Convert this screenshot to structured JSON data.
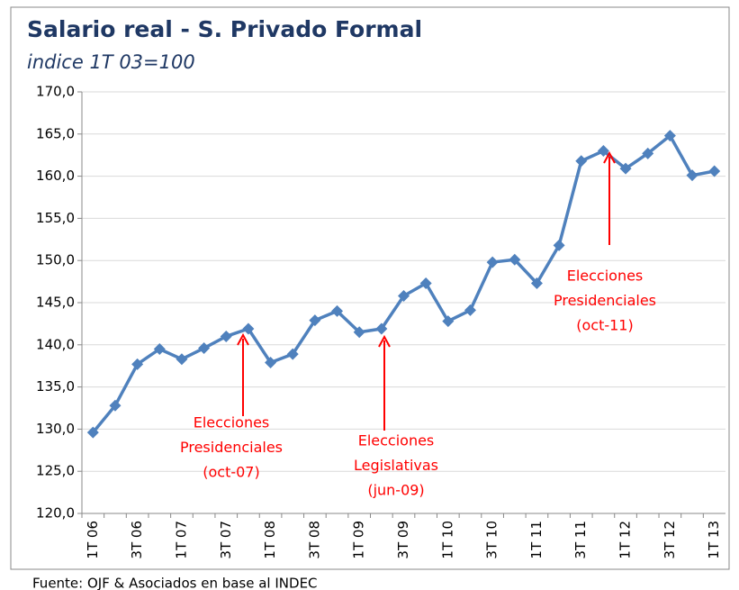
{
  "chart_data": {
    "type": "line",
    "title": "Salario real - S. Privado Formal",
    "subtitle": "indice 1T 03=100",
    "source": "Fuente: OJF & Asociados en base al INDEC",
    "categories": [
      "1T 06",
      null,
      "3T 06",
      null,
      "1T 07",
      null,
      "3T 07",
      null,
      "1T 08",
      null,
      "3T 08",
      null,
      "1T 09",
      null,
      "3T 09",
      null,
      "1T 10",
      null,
      "3T 10",
      null,
      "1T 11",
      null,
      "3T 11",
      null,
      "1T 12",
      null,
      "3T 12",
      null,
      "1T 13"
    ],
    "series": [
      {
        "name": "Salario real",
        "color": "#4f81bd",
        "values": [
          129.6,
          132.8,
          137.7,
          139.5,
          138.3,
          139.6,
          141.0,
          141.9,
          137.9,
          138.9,
          142.9,
          144.0,
          141.5,
          141.9,
          145.8,
          147.3,
          142.8,
          144.1,
          149.8,
          150.1,
          147.3,
          151.8,
          161.8,
          163.0,
          160.9,
          162.7,
          164.8,
          160.1,
          160.6
        ]
      }
    ],
    "ylim": [
      120,
      170
    ],
    "yticks": [
      {
        "value": 120,
        "label": "120,0"
      },
      {
        "value": 125,
        "label": "125,0"
      },
      {
        "value": 130,
        "label": "130,0"
      },
      {
        "value": 135,
        "label": "135,0"
      },
      {
        "value": 140,
        "label": "140,0"
      },
      {
        "value": 145,
        "label": "145,0"
      },
      {
        "value": 150,
        "label": "150,0"
      },
      {
        "value": 155,
        "label": "155,0"
      },
      {
        "value": 160,
        "label": "160,0"
      },
      {
        "value": 165,
        "label": "165,0"
      },
      {
        "value": 170,
        "label": "170,0"
      }
    ],
    "grid": true,
    "annotations": [
      {
        "color": "#ff0000",
        "lines": [
          "Elecciones",
          "Presidenciales",
          "(oct-07)"
        ]
      },
      {
        "color": "#ff0000",
        "lines": [
          "Elecciones",
          "Legislativas",
          "(jun-09)"
        ]
      },
      {
        "color": "#ff0000",
        "lines": [
          "Elecciones",
          "Presidenciales",
          "(oct-11)"
        ]
      }
    ]
  }
}
